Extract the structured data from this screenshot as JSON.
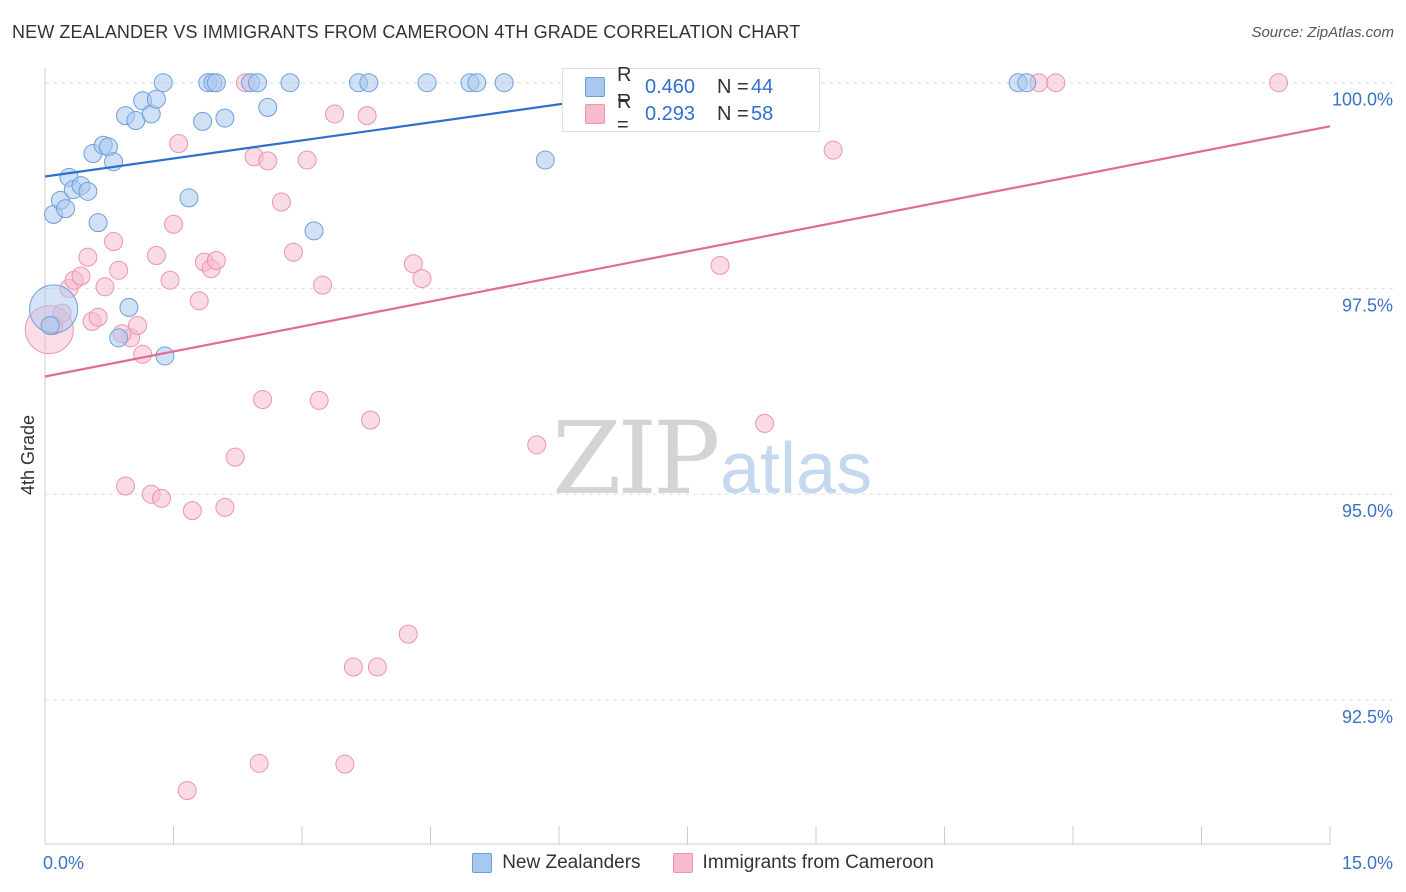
{
  "title": "NEW ZEALANDER VS IMMIGRANTS FROM CAMEROON 4TH GRADE CORRELATION CHART",
  "source": "Source: ZipAtlas.com",
  "watermark": {
    "zip": "ZIP",
    "atlas": "atlas"
  },
  "legend": {
    "blue": {
      "r_label": "R =",
      "r_value": "0.460",
      "n_label": "N =",
      "n_value": "44"
    },
    "pink": {
      "r_label": "R =",
      "r_value": "0.293",
      "n_label": "N =",
      "n_value": "58"
    }
  },
  "bottom_legend": [
    "New Zealanders",
    "Immigrants from Cameroon"
  ],
  "colors": {
    "blue_fill": "#a9c8ef",
    "blue_stroke": "#6d9fdc",
    "blue_line": "#2e6fd1",
    "pink_fill": "#f6bccd",
    "pink_stroke": "#ec94b0",
    "pink_line": "#e06c96",
    "tick_text": "#3a72c4",
    "grid": "#e2e2e2"
  },
  "chart_data": {
    "type": "scatter",
    "title": "NEW ZEALANDER VS IMMIGRANTS FROM CAMEROON 4TH GRADE CORRELATION CHART",
    "xlabel": "",
    "ylabel": "4th Grade",
    "xlim": [
      0,
      15
    ],
    "ylim": [
      90.75,
      100.3
    ],
    "x_tick_labels": [
      "0.0%",
      "15.0%"
    ],
    "y_ticks": [
      92.5,
      95.0,
      97.5,
      100.0
    ],
    "y_tick_labels": [
      "92.5%",
      "95.0%",
      "97.5%",
      "100.0%"
    ],
    "series": [
      {
        "name": "New Zealanders",
        "color": "blue",
        "R": 0.46,
        "N": 44,
        "trend": {
          "x": [
            0,
            7.8
          ],
          "y": [
            98.86,
            100.0
          ]
        },
        "points": [
          {
            "x": 0.1,
            "y": 97.25,
            "big": true
          },
          {
            "x": 0.1,
            "y": 98.4
          },
          {
            "x": 0.18,
            "y": 98.57
          },
          {
            "x": 0.24,
            "y": 98.47
          },
          {
            "x": 0.28,
            "y": 98.85
          },
          {
            "x": 0.33,
            "y": 98.7
          },
          {
            "x": 0.42,
            "y": 98.75
          },
          {
            "x": 0.5,
            "y": 98.68
          },
          {
            "x": 0.56,
            "y": 99.14
          },
          {
            "x": 0.62,
            "y": 98.3
          },
          {
            "x": 0.68,
            "y": 99.24
          },
          {
            "x": 0.74,
            "y": 99.22
          },
          {
            "x": 0.8,
            "y": 99.04
          },
          {
            "x": 0.86,
            "y": 96.9
          },
          {
            "x": 0.94,
            "y": 99.6
          },
          {
            "x": 0.98,
            "y": 97.27
          },
          {
            "x": 1.06,
            "y": 99.54
          },
          {
            "x": 1.14,
            "y": 99.78
          },
          {
            "x": 1.24,
            "y": 99.62
          },
          {
            "x": 1.3,
            "y": 99.8
          },
          {
            "x": 1.38,
            "y": 100.0
          },
          {
            "x": 1.4,
            "y": 96.68
          },
          {
            "x": 1.68,
            "y": 98.6
          },
          {
            "x": 1.84,
            "y": 99.53
          },
          {
            "x": 1.9,
            "y": 100.0
          },
          {
            "x": 1.96,
            "y": 100.0
          },
          {
            "x": 2.0,
            "y": 100.0
          },
          {
            "x": 2.1,
            "y": 99.57
          },
          {
            "x": 2.4,
            "y": 100.0
          },
          {
            "x": 2.48,
            "y": 100.0
          },
          {
            "x": 2.6,
            "y": 99.7
          },
          {
            "x": 2.86,
            "y": 100.0
          },
          {
            "x": 3.14,
            "y": 98.2
          },
          {
            "x": 3.66,
            "y": 100.0
          },
          {
            "x": 3.78,
            "y": 100.0
          },
          {
            "x": 4.46,
            "y": 100.0
          },
          {
            "x": 4.96,
            "y": 100.0
          },
          {
            "x": 5.04,
            "y": 100.0
          },
          {
            "x": 5.36,
            "y": 100.0
          },
          {
            "x": 5.84,
            "y": 99.06
          },
          {
            "x": 7.6,
            "y": 100.0
          },
          {
            "x": 11.36,
            "y": 100.0
          },
          {
            "x": 11.46,
            "y": 100.0
          },
          {
            "x": 0.06,
            "y": 97.05
          }
        ]
      },
      {
        "name": "Immigrants from Cameroon",
        "color": "pink",
        "R": 0.293,
        "N": 58,
        "trend": {
          "x": [
            0,
            15
          ],
          "y": [
            96.43,
            99.47
          ]
        },
        "points": [
          {
            "x": 0.05,
            "y": 97.0,
            "big": true
          },
          {
            "x": 0.1,
            "y": 97.05
          },
          {
            "x": 0.2,
            "y": 97.2
          },
          {
            "x": 0.28,
            "y": 97.5
          },
          {
            "x": 0.34,
            "y": 97.6
          },
          {
            "x": 0.42,
            "y": 97.65
          },
          {
            "x": 0.5,
            "y": 97.88
          },
          {
            "x": 0.55,
            "y": 97.1
          },
          {
            "x": 0.62,
            "y": 97.15
          },
          {
            "x": 0.7,
            "y": 97.52
          },
          {
            "x": 0.8,
            "y": 98.07
          },
          {
            "x": 0.86,
            "y": 97.72
          },
          {
            "x": 0.94,
            "y": 95.1
          },
          {
            "x": 1.0,
            "y": 96.9
          },
          {
            "x": 1.08,
            "y": 97.05
          },
          {
            "x": 1.14,
            "y": 96.7
          },
          {
            "x": 1.24,
            "y": 95.0
          },
          {
            "x": 1.3,
            "y": 97.9
          },
          {
            "x": 1.36,
            "y": 94.95
          },
          {
            "x": 1.46,
            "y": 97.6
          },
          {
            "x": 1.5,
            "y": 98.28
          },
          {
            "x": 1.56,
            "y": 99.26
          },
          {
            "x": 1.66,
            "y": 91.4
          },
          {
            "x": 1.72,
            "y": 94.8
          },
          {
            "x": 1.8,
            "y": 97.35
          },
          {
            "x": 1.86,
            "y": 97.82
          },
          {
            "x": 1.94,
            "y": 97.74
          },
          {
            "x": 2.0,
            "y": 97.84
          },
          {
            "x": 2.1,
            "y": 94.84
          },
          {
            "x": 2.22,
            "y": 95.45
          },
          {
            "x": 2.34,
            "y": 100.0
          },
          {
            "x": 2.44,
            "y": 99.1
          },
          {
            "x": 2.5,
            "y": 91.73
          },
          {
            "x": 2.54,
            "y": 96.15
          },
          {
            "x": 2.6,
            "y": 99.05
          },
          {
            "x": 2.76,
            "y": 98.55
          },
          {
            "x": 2.9,
            "y": 97.94
          },
          {
            "x": 3.06,
            "y": 99.06
          },
          {
            "x": 3.2,
            "y": 96.14
          },
          {
            "x": 3.24,
            "y": 97.54
          },
          {
            "x": 3.38,
            "y": 99.62
          },
          {
            "x": 3.5,
            "y": 91.72
          },
          {
            "x": 3.6,
            "y": 92.9
          },
          {
            "x": 3.76,
            "y": 99.6
          },
          {
            "x": 3.8,
            "y": 95.9
          },
          {
            "x": 3.88,
            "y": 92.9
          },
          {
            "x": 4.24,
            "y": 93.3
          },
          {
            "x": 4.3,
            "y": 97.8
          },
          {
            "x": 4.4,
            "y": 97.62
          },
          {
            "x": 5.74,
            "y": 95.6
          },
          {
            "x": 6.86,
            "y": 100.0
          },
          {
            "x": 7.88,
            "y": 97.78
          },
          {
            "x": 8.4,
            "y": 95.86
          },
          {
            "x": 9.2,
            "y": 99.18
          },
          {
            "x": 11.6,
            "y": 100.0
          },
          {
            "x": 11.8,
            "y": 100.0
          },
          {
            "x": 14.4,
            "y": 100.0
          },
          {
            "x": 0.9,
            "y": 96.95
          }
        ]
      }
    ]
  }
}
